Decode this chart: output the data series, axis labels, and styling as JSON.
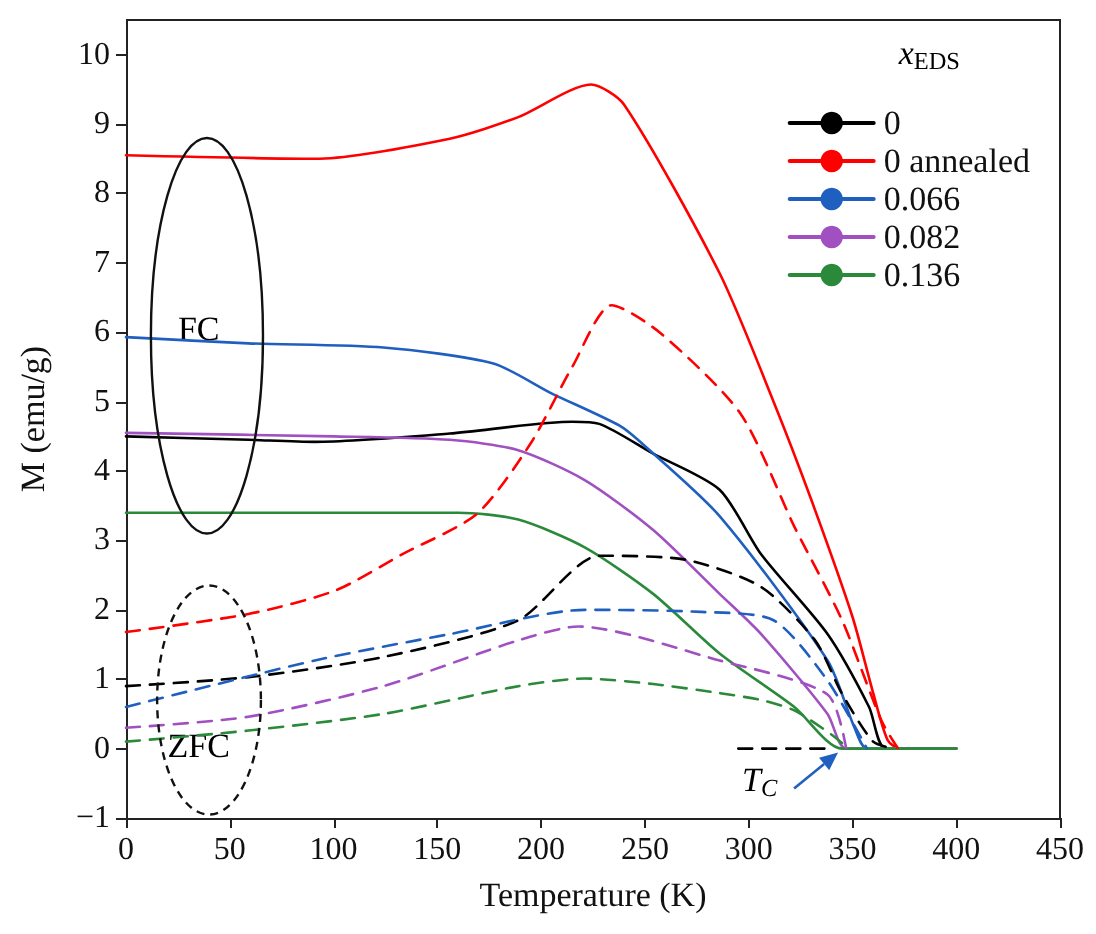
{
  "chart_data": {
    "type": "line",
    "xlabel": "Temperature (K)",
    "ylabel": "M (emu/g)",
    "legend_title": "x$_{EDS}$",
    "legend": "top right",
    "grid": false,
    "marker": "none",
    "xlim": [
      0,
      450
    ],
    "xticks": [
      0,
      50,
      100,
      150,
      200,
      250,
      300,
      350,
      400,
      450
    ],
    "ylim": [
      -1,
      10.5
    ],
    "yticks": [
      -1,
      0,
      1,
      2,
      3,
      4,
      5,
      6,
      7,
      8,
      9,
      10
    ],
    "annotations": [
      "FC",
      "ZFC",
      {
        "text": "T$_{C}$",
        "x": 345,
        "y": 0
      }
    ],
    "series": [
      {
        "name": "0",
        "color": "#000000",
        "line_style": "solid",
        "x": [
          0,
          59,
          91,
          156,
          215,
          228,
          254,
          286,
          306,
          338,
          358,
          366,
          400
        ],
        "values": [
          4.5,
          4.45,
          4.42,
          4.54,
          4.71,
          4.68,
          4.25,
          3.73,
          2.8,
          1.65,
          0.6,
          0,
          0
        ]
      },
      {
        "name": "0 annealed",
        "color": "#ff0000",
        "line_style": "solid",
        "x": [
          0,
          91,
          156,
          189,
          224,
          240,
          286,
          312,
          330,
          350,
          360,
          367,
          373,
          400
        ],
        "values": [
          8.55,
          8.5,
          8.79,
          9.1,
          9.57,
          9.28,
          6.85,
          5.0,
          3.6,
          1.9,
          0.8,
          0.12,
          0,
          0
        ]
      },
      {
        "name": "0.066",
        "color": "#1f5fbf",
        "line_style": "solid",
        "x": [
          0,
          59,
          124,
          177,
          205,
          238,
          250,
          286,
          338,
          351,
          357,
          400
        ],
        "values": [
          5.93,
          5.84,
          5.78,
          5.55,
          5.12,
          4.65,
          4.36,
          3.35,
          1.27,
          0.3,
          0,
          0
        ]
      },
      {
        "name": "0.082",
        "color": "#a050c0",
        "line_style": "solid",
        "x": [
          0,
          100,
          156,
          189,
          221,
          254,
          286,
          306,
          338,
          347,
          400
        ],
        "values": [
          4.55,
          4.5,
          4.45,
          4.3,
          3.87,
          3.15,
          2.23,
          1.65,
          0.5,
          0,
          0
        ]
      },
      {
        "name": "0.136",
        "color": "#2a8a3a",
        "line_style": "solid",
        "x": [
          0,
          100,
          160,
          189,
          221,
          254,
          286,
          322,
          345,
          400
        ],
        "values": [
          3.4,
          3.4,
          3.4,
          3.3,
          2.9,
          2.23,
          1.37,
          0.6,
          0,
          0
        ]
      },
      {
        "color": "#ff0000",
        "line_style": "dashed",
        "x": [
          0,
          59,
          101,
          133,
          169,
          195,
          215,
          234,
          257,
          296,
          322,
          345,
          364,
          372
        ],
        "values": [
          1.68,
          1.94,
          2.28,
          2.8,
          3.38,
          4.4,
          5.5,
          6.39,
          6.0,
          4.83,
          3.2,
          1.85,
          0.4,
          0
        ]
      },
      {
        "color": "#000000",
        "line_style": "dashed",
        "x": [
          0,
          59,
          124,
          189,
          228,
          270,
          306,
          332,
          345,
          360,
          370
        ],
        "values": [
          0.9,
          1.03,
          1.32,
          1.85,
          2.78,
          2.72,
          2.33,
          1.56,
          0.79,
          0.1,
          0
        ]
      },
      {
        "color": "#1f5fbf",
        "line_style": "dashed",
        "x": [
          0,
          91,
          156,
          221,
          277,
          312,
          338,
          357
        ],
        "values": [
          0.6,
          1.27,
          1.65,
          2.0,
          1.97,
          1.85,
          0.98,
          0
        ]
      },
      {
        "color": "#a050c0",
        "line_style": "dashed",
        "x": [
          0,
          59,
          124,
          189,
          218,
          286,
          338,
          347
        ],
        "values": [
          0.3,
          0.46,
          0.9,
          1.56,
          1.76,
          1.27,
          0.78,
          0
        ]
      },
      {
        "color": "#2a8a3a",
        "line_style": "dashed",
        "x": [
          0,
          59,
          124,
          189,
          221,
          254,
          286,
          306,
          322,
          340,
          348
        ],
        "values": [
          0.1,
          0.26,
          0.5,
          0.9,
          1.01,
          0.93,
          0.8,
          0.7,
          0.55,
          0.2,
          0
        ]
      },
      {
        "color": "#000000",
        "line_style": "dashed",
        "x": [
          295,
          340
        ],
        "values": [
          0,
          0
        ]
      }
    ]
  }
}
